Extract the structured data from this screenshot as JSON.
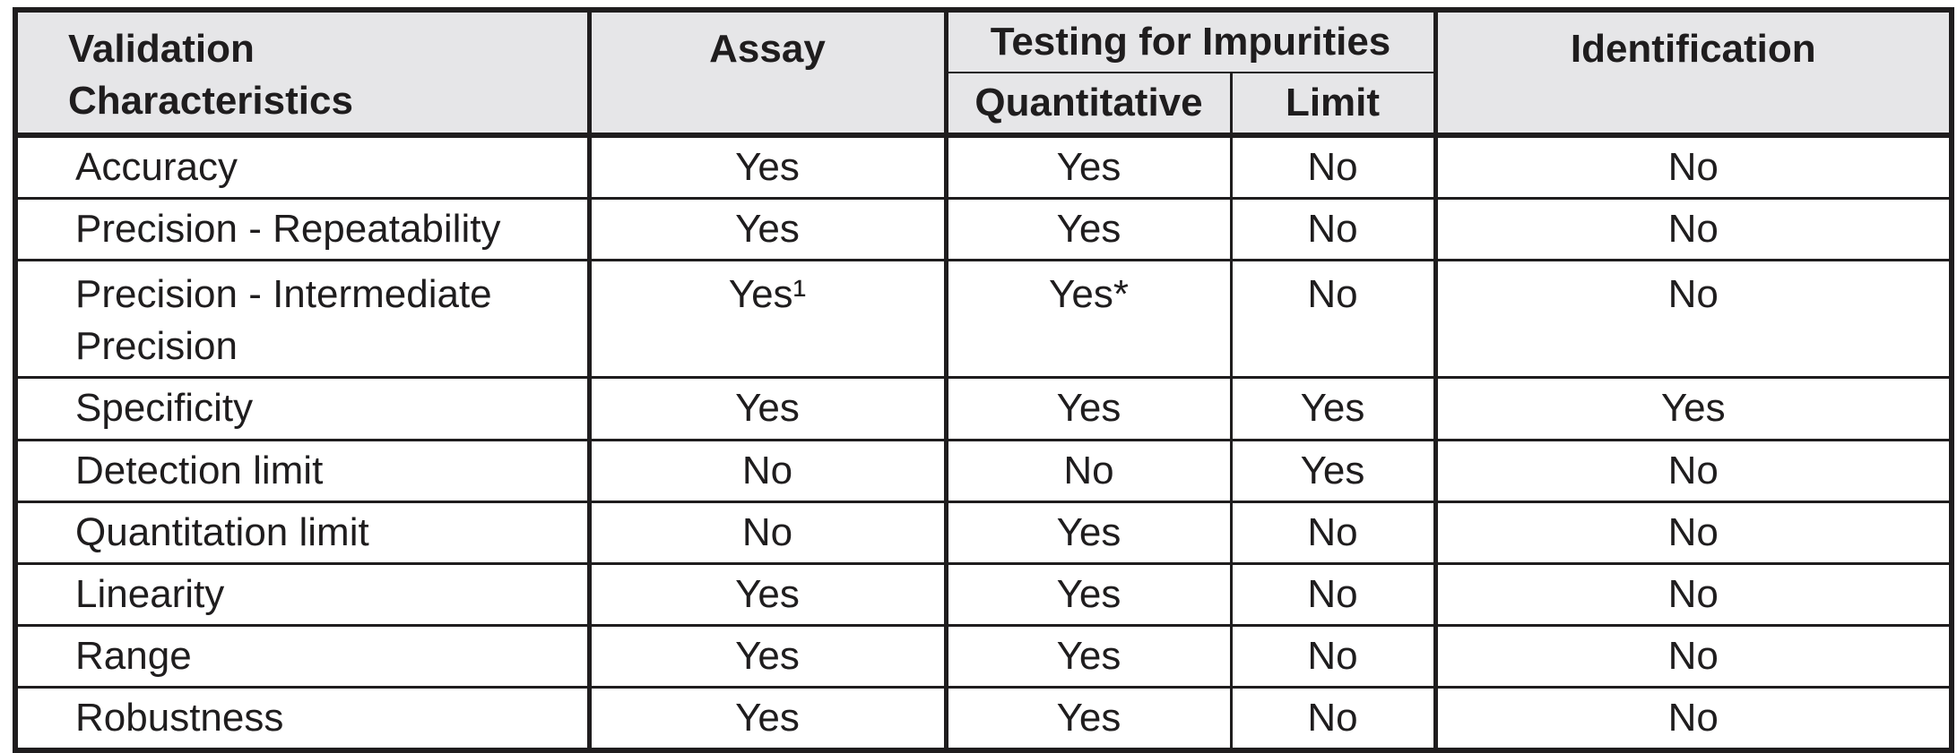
{
  "colors": {
    "border": "#1f1d1e",
    "header_bg": "#e6e6e8",
    "body_bg": "#ffffff",
    "text": "#1f1d1e"
  },
  "table": {
    "header": {
      "validation_characteristics": "Validation\nCharacteristics",
      "assay": "Assay",
      "testing_for_impurities": "Testing for Impurities",
      "quantitative": "Quantitative",
      "limit": "Limit",
      "identification": "Identification"
    },
    "rows": [
      {
        "characteristic": "Accuracy",
        "assay": "Yes",
        "quantitative": "Yes",
        "limit": "No",
        "identification": "No"
      },
      {
        "characteristic": "Precision - Repeatability",
        "assay": "Yes",
        "quantitative": "Yes",
        "limit": "No",
        "identification": "No"
      },
      {
        "characteristic": "Precision - Intermediate Precision",
        "assay": "Yes¹",
        "quantitative": "Yes*",
        "limit": "No",
        "identification": "No"
      },
      {
        "characteristic": "Specificity",
        "assay": "Yes",
        "quantitative": "Yes",
        "limit": "Yes",
        "identification": "Yes"
      },
      {
        "characteristic": "Detection limit",
        "assay": "No",
        "quantitative": "No",
        "limit": "Yes",
        "identification": "No"
      },
      {
        "characteristic": "Quantitation limit",
        "assay": "No",
        "quantitative": "Yes",
        "limit": "No",
        "identification": "No"
      },
      {
        "characteristic": "Linearity",
        "assay": "Yes",
        "quantitative": "Yes",
        "limit": "No",
        "identification": "No"
      },
      {
        "characteristic": "Range",
        "assay": "Yes",
        "quantitative": "Yes",
        "limit": "No",
        "identification": "No"
      },
      {
        "characteristic": "Robustness",
        "assay": "Yes",
        "quantitative": "Yes",
        "limit": "No",
        "identification": "No"
      }
    ]
  }
}
